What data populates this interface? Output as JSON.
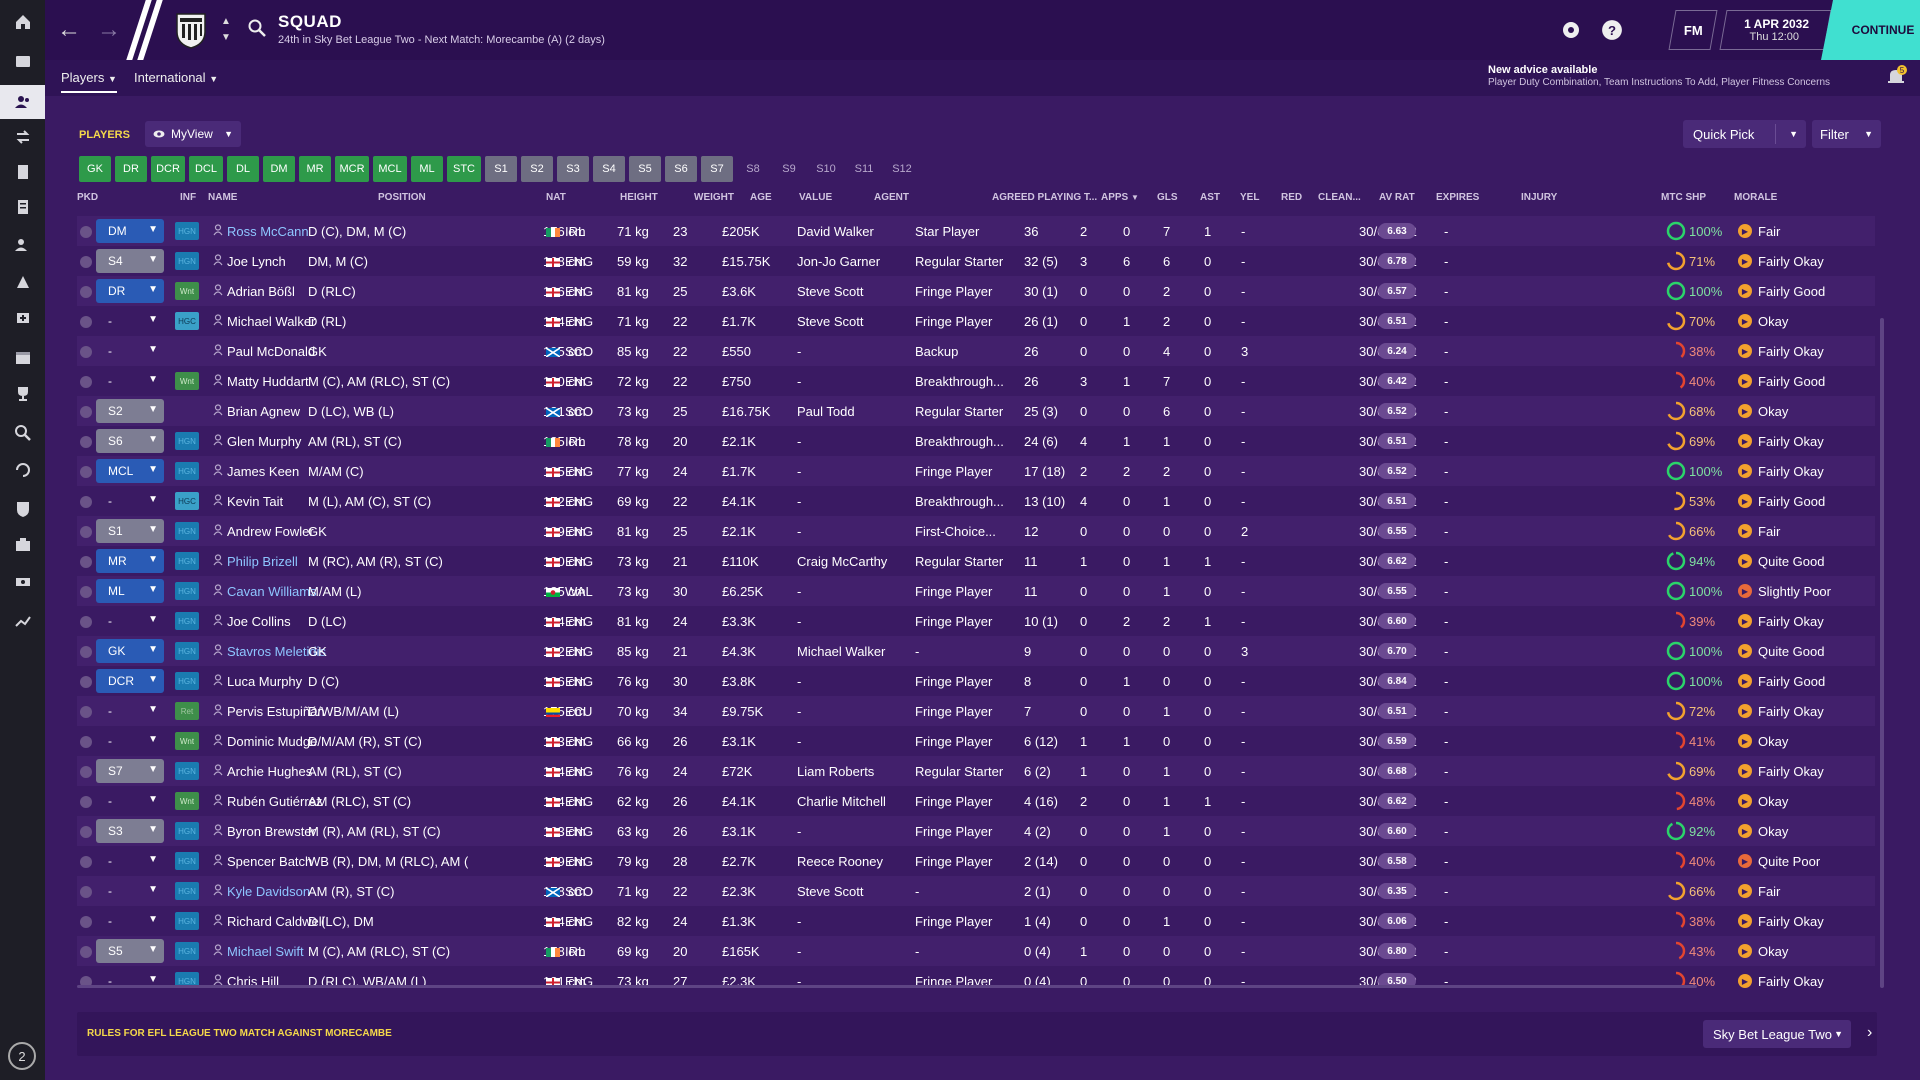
{
  "header": {
    "title": "SQUAD",
    "subtitle": "24th in Sky Bet League Two - Next Match: Morecambe (A) (2 days)",
    "fm_label": "FM",
    "date": "1 APR 2032",
    "time": "Thu 12:00",
    "continue_label": "CONTINUE"
  },
  "subnav": {
    "players": "Players",
    "international": "International"
  },
  "advice": {
    "title": "New advice available",
    "text": "Player Duty Combination, Team Instructions To Add, Player Fitness Concerns",
    "count": "5"
  },
  "toolbar": {
    "players_label": "PLAYERS",
    "view_label": "MyView",
    "quick_pick": "Quick Pick",
    "filter": "Filter"
  },
  "positions": [
    {
      "label": "GK",
      "state": "green"
    },
    {
      "label": "DR",
      "state": "green"
    },
    {
      "label": "DCR",
      "state": "green"
    },
    {
      "label": "DCL",
      "state": "green"
    },
    {
      "label": "DL",
      "state": "green"
    },
    {
      "label": "DM",
      "state": "green"
    },
    {
      "label": "MR",
      "state": "green"
    },
    {
      "label": "MCR",
      "state": "green"
    },
    {
      "label": "MCL",
      "state": "green"
    },
    {
      "label": "ML",
      "state": "green"
    },
    {
      "label": "STC",
      "state": "green"
    },
    {
      "label": "S1",
      "state": "grey"
    },
    {
      "label": "S2",
      "state": "grey"
    },
    {
      "label": "S3",
      "state": "grey"
    },
    {
      "label": "S4",
      "state": "grey"
    },
    {
      "label": "S5",
      "state": "grey"
    },
    {
      "label": "S6",
      "state": "grey"
    },
    {
      "label": "S7",
      "state": "grey"
    },
    {
      "label": "S8",
      "state": "off"
    },
    {
      "label": "S9",
      "state": "off"
    },
    {
      "label": "S10",
      "state": "off"
    },
    {
      "label": "S11",
      "state": "off"
    },
    {
      "label": "S12",
      "state": "off"
    }
  ],
  "columns": {
    "pkd": "PKD",
    "inf": "INF",
    "name": "NAME",
    "position": "POSITION",
    "nat": "NAT",
    "height": "HEIGHT",
    "weight": "WEIGHT",
    "age": "AGE",
    "value": "VALUE",
    "agent": "AGENT",
    "playing_time": "AGREED PLAYING T...",
    "apps": "APPS",
    "gls": "GLS",
    "ast": "AST",
    "yel": "YEL",
    "red": "RED",
    "clean": "CLEAN...",
    "avrat": "AV RAT",
    "expires": "EXPIRES",
    "injury": "INJURY",
    "mtc": "MTC SHP",
    "morale": "MORALE"
  },
  "players": [
    {
      "pkd": "DM",
      "inf": "HGN",
      "name": "Ross McCann",
      "link": true,
      "pos": "D (C), DM, M (C)",
      "flag": "IRL",
      "nat": "IRL",
      "height": "176 cm",
      "weight": "71 kg",
      "age": "23",
      "value": "£205K",
      "agent": "David Walker",
      "pt": "Star Player",
      "apps": "36",
      "gls": "2",
      "ast": "0",
      "yel": "7",
      "red": "1",
      "clean": "-",
      "avrat": "6.63",
      "expires": "30/6/2032",
      "injury": "-",
      "mtc": "100%",
      "mtc_val": 100,
      "morale": "Fair"
    },
    {
      "pkd": "S4",
      "inf": "HGN",
      "name": "Joe Lynch",
      "link": false,
      "pos": "DM, M (C)",
      "flag": "ENG",
      "nat": "ENG",
      "height": "168 cm",
      "weight": "59 kg",
      "age": "32",
      "value": "£15.75K",
      "agent": "Jon-Jo Garner",
      "pt": "Regular Starter",
      "apps": "32 (5)",
      "gls": "3",
      "ast": "6",
      "yel": "6",
      "red": "0",
      "clean": "-",
      "avrat": "6.78",
      "expires": "30/6/2032",
      "injury": "-",
      "mtc": "71%",
      "mtc_val": 71,
      "morale": "Fairly Okay"
    },
    {
      "pkd": "DR",
      "inf": "Wnt",
      "name": "Adrian Bößl",
      "link": false,
      "pos": "D (RLC)",
      "flag": "ENG",
      "nat": "ENG",
      "height": "186 cm",
      "weight": "81 kg",
      "age": "25",
      "value": "£3.6K",
      "agent": "Steve Scott",
      "pt": "Fringe Player",
      "apps": "30 (1)",
      "gls": "0",
      "ast": "0",
      "yel": "2",
      "red": "0",
      "clean": "-",
      "avrat": "6.57",
      "expires": "30/6/2032",
      "injury": "-",
      "mtc": "100%",
      "mtc_val": 100,
      "morale": "Fairly Good"
    },
    {
      "pkd": "-",
      "inf": "HGC",
      "name": "Michael Walker",
      "link": false,
      "pos": "D (RL)",
      "flag": "ENG",
      "nat": "ENG",
      "height": "174 cm",
      "weight": "71 kg",
      "age": "22",
      "value": "£1.7K",
      "agent": "Steve Scott",
      "pt": "Fringe Player",
      "apps": "26 (1)",
      "gls": "0",
      "ast": "1",
      "yel": "2",
      "red": "0",
      "clean": "-",
      "avrat": "6.51",
      "expires": "30/6/2032",
      "injury": "-",
      "mtc": "70%",
      "mtc_val": 70,
      "morale": "Okay"
    },
    {
      "pkd": "-",
      "inf": "",
      "name": "Paul McDonald",
      "link": false,
      "pos": "GK",
      "flag": "SCO",
      "nat": "SCO",
      "height": "195 cm",
      "weight": "85 kg",
      "age": "22",
      "value": "£550",
      "agent": "-",
      "pt": "Backup",
      "apps": "26",
      "gls": "0",
      "ast": "0",
      "yel": "4",
      "red": "0",
      "clean": "3",
      "avrat": "6.24",
      "expires": "30/6/2032",
      "injury": "-",
      "mtc": "38%",
      "mtc_val": 38,
      "morale": "Fairly Okay"
    },
    {
      "pkd": "-",
      "inf": "Wnt",
      "name": "Matty Huddart",
      "link": false,
      "pos": "M (C), AM (RLC), ST (C)",
      "flag": "ENG",
      "nat": "ENG",
      "height": "180 cm",
      "weight": "72 kg",
      "age": "22",
      "value": "£750",
      "agent": "-",
      "pt": "Breakthrough...",
      "apps": "26",
      "gls": "3",
      "ast": "1",
      "yel": "7",
      "red": "0",
      "clean": "-",
      "avrat": "6.42",
      "expires": "30/6/2032",
      "injury": "-",
      "mtc": "40%",
      "mtc_val": 40,
      "morale": "Fairly Good"
    },
    {
      "pkd": "S2",
      "inf": "",
      "name": "Brian Agnew",
      "link": false,
      "pos": "D (LC), WB (L)",
      "flag": "SCO",
      "nat": "SCO",
      "height": "181 cm",
      "weight": "73 kg",
      "age": "25",
      "value": "£16.75K",
      "agent": "Paul Todd",
      "pt": "Regular Starter",
      "apps": "25 (3)",
      "gls": "0",
      "ast": "0",
      "yel": "6",
      "red": "0",
      "clean": "-",
      "avrat": "6.52",
      "expires": "30/6/2033",
      "injury": "-",
      "mtc": "68%",
      "mtc_val": 68,
      "morale": "Okay"
    },
    {
      "pkd": "S6",
      "inf": "HGN",
      "name": "Glen Murphy",
      "link": false,
      "pos": "AM (RL), ST (C)",
      "flag": "IRL",
      "nat": "IRL",
      "height": "185 cm",
      "weight": "78 kg",
      "age": "20",
      "value": "£2.1K",
      "agent": "-",
      "pt": "Breakthrough...",
      "apps": "24 (6)",
      "gls": "4",
      "ast": "1",
      "yel": "1",
      "red": "0",
      "clean": "-",
      "avrat": "6.51",
      "expires": "30/6/2032",
      "injury": "-",
      "mtc": "69%",
      "mtc_val": 69,
      "morale": "Fairly Okay"
    },
    {
      "pkd": "MCL",
      "inf": "HGN",
      "name": "James Keen",
      "link": false,
      "pos": "M/AM (C)",
      "flag": "ENG",
      "nat": "ENG",
      "height": "185 cm",
      "weight": "77 kg",
      "age": "24",
      "value": "£1.7K",
      "agent": "-",
      "pt": "Fringe Player",
      "apps": "17 (18)",
      "gls": "2",
      "ast": "2",
      "yel": "2",
      "red": "0",
      "clean": "-",
      "avrat": "6.52",
      "expires": "30/6/2032",
      "injury": "-",
      "mtc": "100%",
      "mtc_val": 100,
      "morale": "Fairly Okay"
    },
    {
      "pkd": "-",
      "inf": "HGC",
      "name": "Kevin Tait",
      "link": false,
      "pos": "M (L), AM (C), ST (C)",
      "flag": "ENG",
      "nat": "ENG",
      "height": "172 cm",
      "weight": "69 kg",
      "age": "22",
      "value": "£4.1K",
      "agent": "-",
      "pt": "Breakthrough...",
      "apps": "13 (10)",
      "gls": "4",
      "ast": "0",
      "yel": "1",
      "red": "0",
      "clean": "-",
      "avrat": "6.51",
      "expires": "30/6/2032",
      "injury": "-",
      "mtc": "53%",
      "mtc_val": 53,
      "morale": "Fairly Good"
    },
    {
      "pkd": "S1",
      "inf": "HGN",
      "name": "Andrew Fowler",
      "link": false,
      "pos": "GK",
      "flag": "ENG",
      "nat": "ENG",
      "height": "189 cm",
      "weight": "81 kg",
      "age": "25",
      "value": "£2.1K",
      "agent": "-",
      "pt": "First-Choice...",
      "apps": "12",
      "gls": "0",
      "ast": "0",
      "yel": "0",
      "red": "0",
      "clean": "2",
      "avrat": "6.55",
      "expires": "30/6/2032",
      "injury": "-",
      "mtc": "66%",
      "mtc_val": 66,
      "morale": "Fair"
    },
    {
      "pkd": "MR",
      "inf": "HGN",
      "name": "Philip Brizell",
      "link": true,
      "pos": "M (RC), AM (R), ST (C)",
      "flag": "ENG",
      "nat": "ENG",
      "height": "180 cm",
      "weight": "73 kg",
      "age": "21",
      "value": "£110K",
      "agent": "Craig McCarthy",
      "pt": "Regular Starter",
      "apps": "11",
      "gls": "1",
      "ast": "0",
      "yel": "1",
      "red": "1",
      "clean": "-",
      "avrat": "6.62",
      "expires": "30/6/2032",
      "injury": "-",
      "mtc": "94%",
      "mtc_val": 94,
      "morale": "Quite Good"
    },
    {
      "pkd": "ML",
      "inf": "HGN",
      "name": "Cavan Williams",
      "link": true,
      "pos": "M/AM (L)",
      "flag": "WAL",
      "nat": "WAL",
      "height": "185 cm",
      "weight": "73 kg",
      "age": "30",
      "value": "£6.25K",
      "agent": "-",
      "pt": "Fringe Player",
      "apps": "11",
      "gls": "0",
      "ast": "0",
      "yel": "1",
      "red": "0",
      "clean": "-",
      "avrat": "6.55",
      "expires": "30/6/2032",
      "injury": "-",
      "mtc": "100%",
      "mtc_val": 100,
      "morale": "Slightly Poor"
    },
    {
      "pkd": "-",
      "inf": "HGN",
      "name": "Joe Collins",
      "link": false,
      "pos": "D (LC)",
      "flag": "ENG",
      "nat": "ENG",
      "height": "184 cm",
      "weight": "81 kg",
      "age": "24",
      "value": "£3.3K",
      "agent": "-",
      "pt": "Fringe Player",
      "apps": "10 (1)",
      "gls": "0",
      "ast": "2",
      "yel": "2",
      "red": "1",
      "clean": "-",
      "avrat": "6.60",
      "expires": "30/6/2032",
      "injury": "-",
      "mtc": "39%",
      "mtc_val": 39,
      "morale": "Fairly Okay"
    },
    {
      "pkd": "GK",
      "inf": "HGN",
      "name": "Stavros Meletidis",
      "link": true,
      "pos": "GK",
      "flag": "ENG",
      "nat": "ENG",
      "height": "192 cm",
      "weight": "85 kg",
      "age": "21",
      "value": "£4.3K",
      "agent": "Michael Walker",
      "pt": "-",
      "apps": "9",
      "gls": "0",
      "ast": "0",
      "yel": "0",
      "red": "0",
      "clean": "3",
      "avrat": "6.70",
      "expires": "30/6/2032",
      "injury": "-",
      "mtc": "100%",
      "mtc_val": 100,
      "morale": "Quite Good"
    },
    {
      "pkd": "DCR",
      "inf": "HGN",
      "name": "Luca Murphy",
      "link": false,
      "pos": "D (C)",
      "flag": "ENG",
      "nat": "ENG",
      "height": "186 cm",
      "weight": "76 kg",
      "age": "30",
      "value": "£3.8K",
      "agent": "-",
      "pt": "Fringe Player",
      "apps": "8",
      "gls": "0",
      "ast": "1",
      "yel": "0",
      "red": "0",
      "clean": "-",
      "avrat": "6.84",
      "expires": "30/6/2032",
      "injury": "-",
      "mtc": "100%",
      "mtc_val": 100,
      "morale": "Fairly Good"
    },
    {
      "pkd": "-",
      "inf": "Ret",
      "name": "Pervis Estupiñán",
      "link": false,
      "pos": "D/WB/M/AM (L)",
      "flag": "ECU",
      "nat": "ECU",
      "height": "175 cm",
      "weight": "70 kg",
      "age": "34",
      "value": "£9.75K",
      "agent": "-",
      "pt": "Fringe Player",
      "apps": "7",
      "gls": "0",
      "ast": "0",
      "yel": "1",
      "red": "0",
      "clean": "-",
      "avrat": "6.51",
      "expires": "30/6/2032",
      "injury": "-",
      "mtc": "72%",
      "mtc_val": 72,
      "morale": "Fairly Okay"
    },
    {
      "pkd": "-",
      "inf": "Wnt",
      "name": "Dominic Mudge",
      "link": false,
      "pos": "D/M/AM (R), ST (C)",
      "flag": "ENG",
      "nat": "ENG",
      "height": "173 cm",
      "weight": "66 kg",
      "age": "26",
      "value": "£3.1K",
      "agent": "-",
      "pt": "Fringe Player",
      "apps": "6 (12)",
      "gls": "1",
      "ast": "1",
      "yel": "0",
      "red": "0",
      "clean": "-",
      "avrat": "6.59",
      "expires": "30/6/2032",
      "injury": "-",
      "mtc": "41%",
      "mtc_val": 41,
      "morale": "Okay"
    },
    {
      "pkd": "S7",
      "inf": "HGN",
      "name": "Archie Hughes",
      "link": false,
      "pos": "AM (RL), ST (C)",
      "flag": "ENG",
      "nat": "ENG",
      "height": "184 cm",
      "weight": "76 kg",
      "age": "24",
      "value": "£72K",
      "agent": "Liam Roberts",
      "pt": "Regular Starter",
      "apps": "6 (2)",
      "gls": "1",
      "ast": "0",
      "yel": "1",
      "red": "0",
      "clean": "-",
      "avrat": "6.68",
      "expires": "30/6/2033",
      "injury": "-",
      "mtc": "69%",
      "mtc_val": 69,
      "morale": "Fairly Okay"
    },
    {
      "pkd": "-",
      "inf": "Wnt",
      "name": "Rubén Gutiérrez",
      "link": false,
      "pos": "AM (RLC), ST (C)",
      "flag": "ENG",
      "nat": "ENG",
      "height": "164 cm",
      "weight": "62 kg",
      "age": "26",
      "value": "£4.1K",
      "agent": "Charlie Mitchell",
      "pt": "Fringe Player",
      "apps": "4 (16)",
      "gls": "2",
      "ast": "0",
      "yel": "1",
      "red": "1",
      "clean": "-",
      "avrat": "6.62",
      "expires": "30/6/2032",
      "injury": "-",
      "mtc": "48%",
      "mtc_val": 48,
      "morale": "Okay"
    },
    {
      "pkd": "S3",
      "inf": "HGN",
      "name": "Byron Brewster",
      "link": false,
      "pos": "M (R), AM (RL), ST (C)",
      "flag": "ENG",
      "nat": "ENG",
      "height": "163 cm",
      "weight": "63 kg",
      "age": "26",
      "value": "£3.1K",
      "agent": "-",
      "pt": "Fringe Player",
      "apps": "4 (2)",
      "gls": "0",
      "ast": "0",
      "yel": "1",
      "red": "0",
      "clean": "-",
      "avrat": "6.60",
      "expires": "30/6/2032",
      "injury": "-",
      "mtc": "92%",
      "mtc_val": 92,
      "morale": "Okay"
    },
    {
      "pkd": "-",
      "inf": "HGN",
      "name": "Spencer Batch",
      "link": false,
      "pos": "WB (R), DM, M (RLC), AM (...",
      "flag": "ENG",
      "nat": "ENG",
      "height": "179 cm",
      "weight": "79 kg",
      "age": "28",
      "value": "£2.7K",
      "agent": "Reece Rooney",
      "pt": "Fringe Player",
      "apps": "2 (14)",
      "gls": "0",
      "ast": "0",
      "yel": "0",
      "red": "0",
      "clean": "-",
      "avrat": "6.58",
      "expires": "30/6/2032",
      "injury": "-",
      "mtc": "40%",
      "mtc_val": 40,
      "morale": "Quite Poor"
    },
    {
      "pkd": "-",
      "inf": "HGN",
      "name": "Kyle Davidson",
      "link": true,
      "pos": "AM (R), ST (C)",
      "flag": "SCO",
      "nat": "SCO",
      "height": "178 cm",
      "weight": "71 kg",
      "age": "22",
      "value": "£2.3K",
      "agent": "Steve Scott",
      "pt": "-",
      "apps": "2 (1)",
      "gls": "0",
      "ast": "0",
      "yel": "0",
      "red": "0",
      "clean": "-",
      "avrat": "6.35",
      "expires": "30/6/2032",
      "injury": "-",
      "mtc": "66%",
      "mtc_val": 66,
      "morale": "Fair"
    },
    {
      "pkd": "-",
      "inf": "HGN",
      "name": "Richard Caldwell",
      "link": false,
      "pos": "D (LC), DM",
      "flag": "ENG",
      "nat": "ENG",
      "height": "184 cm",
      "weight": "82 kg",
      "age": "24",
      "value": "£1.3K",
      "agent": "-",
      "pt": "Fringe Player",
      "apps": "1 (4)",
      "gls": "0",
      "ast": "0",
      "yel": "1",
      "red": "0",
      "clean": "-",
      "avrat": "6.06",
      "expires": "30/6/2032",
      "injury": "-",
      "mtc": "38%",
      "mtc_val": 38,
      "morale": "Fairly Okay"
    },
    {
      "pkd": "S5",
      "inf": "HGN",
      "name": "Michael Swift",
      "link": true,
      "pos": "M (C), AM (RLC), ST (C)",
      "flag": "IRL",
      "nat": "IRL",
      "height": "178 cm",
      "weight": "69 kg",
      "age": "20",
      "value": "£165K",
      "agent": "-",
      "pt": "-",
      "apps": "0 (4)",
      "gls": "1",
      "ast": "0",
      "yel": "0",
      "red": "0",
      "clean": "-",
      "avrat": "6.80",
      "expires": "30/6/2032",
      "injury": "-",
      "mtc": "43%",
      "mtc_val": 43,
      "morale": "Okay"
    },
    {
      "pkd": "-",
      "inf": "HGN",
      "name": "Chris Hill",
      "link": false,
      "pos": "D (RLC), WB/AM (L)",
      "flag": "ENG",
      "nat": "ENG",
      "height": "181 cm",
      "weight": "73 kg",
      "age": "27",
      "value": "£2.3K",
      "agent": "-",
      "pt": "Fringe Player",
      "apps": "0 (4)",
      "gls": "0",
      "ast": "0",
      "yel": "0",
      "red": "0",
      "clean": "-",
      "avrat": "6.50",
      "expires": "30/6/2032",
      "injury": "-",
      "mtc": "40%",
      "mtc_val": 40,
      "morale": "Fairly Okay"
    }
  ],
  "footer": {
    "rules": "RULES FOR EFL LEAGUE TWO MATCH AGAINST MORECAMBE",
    "league": "Sky Bet League Two"
  },
  "notification_count": "2",
  "colors": {
    "green_ring": "#2bd46a",
    "orange_ring": "#f2a12e",
    "red_ring": "#e2452f",
    "link": "#8ec6ff",
    "continue": "#40e0d0"
  }
}
